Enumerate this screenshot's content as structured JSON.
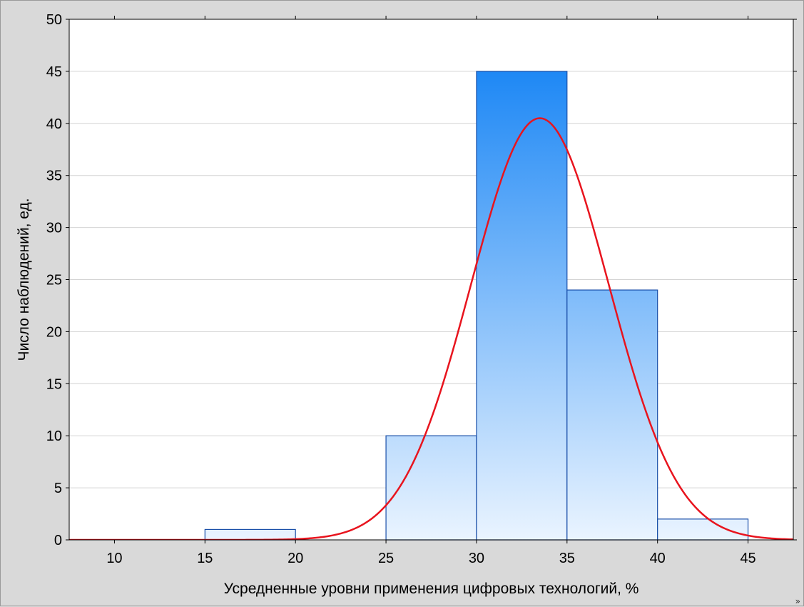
{
  "chart_data": {
    "type": "bar",
    "subtype": "histogram-with-normal-curve",
    "bins": [
      {
        "from": 15,
        "to": 20,
        "count": 1
      },
      {
        "from": 20,
        "to": 25,
        "count": 0
      },
      {
        "from": 25,
        "to": 30,
        "count": 10
      },
      {
        "from": 30,
        "to": 35,
        "count": 45
      },
      {
        "from": 35,
        "to": 40,
        "count": 24
      },
      {
        "from": 40,
        "to": 45,
        "count": 2
      }
    ],
    "normal_curve": {
      "mean": 33.5,
      "sd": 3.8,
      "peak": 40.5,
      "color": "#e8141e"
    },
    "xlim": [
      7.5,
      47.5
    ],
    "ylim": [
      0,
      50
    ],
    "x_ticks": [
      10,
      15,
      20,
      25,
      30,
      35,
      40,
      45
    ],
    "y_ticks": [
      0,
      5,
      10,
      15,
      20,
      25,
      30,
      35,
      40,
      45,
      50
    ],
    "xlabel": "Усредненные уровни применения цифровых технологий, %",
    "ylabel": "Число наблюдений, ед.",
    "grid": true,
    "colors": {
      "bar_top": "#1e88f5",
      "bar_bottom": "#eaf4ff",
      "bar_stroke": "#1a4fa8",
      "grid": "#d4d4d4",
      "background": "#d9d9d9",
      "plot_background": "#ffffff"
    }
  },
  "ui": {
    "scroll_glyph": "»"
  }
}
